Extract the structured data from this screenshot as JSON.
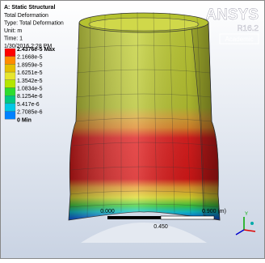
{
  "header": {
    "title": "A: Static Structural",
    "lines": [
      "Total Deformation",
      "Type: Total Deformation",
      "Unit: m",
      "Time: 1",
      "1/30/2016 2:28 PM"
    ]
  },
  "legend": {
    "entries": [
      {
        "label": "2.4376e-5 Max",
        "color": "#ff0000"
      },
      {
        "label": "2.1668e-5",
        "color": "#ff8c00"
      },
      {
        "label": "1.8959e-5",
        "color": "#e5c000"
      },
      {
        "label": "1.6251e-5",
        "color": "#e6e62e"
      },
      {
        "label": "1.3542e-5",
        "color": "#b4e600"
      },
      {
        "label": "1.0834e-5",
        "color": "#2edc2e"
      },
      {
        "label": "8.1254e-6",
        "color": "#00c882"
      },
      {
        "label": "5.417e-6",
        "color": "#00c8e6"
      },
      {
        "label": "2.7085e-6",
        "color": "#0082ff"
      },
      {
        "label": "0 Min",
        "color": "#0000ff"
      }
    ]
  },
  "logo": {
    "brand": "ANSYS",
    "version": "R16.2",
    "edition": "Academic"
  },
  "scale": {
    "start": "0.000",
    "end": "0.900 (m)",
    "mid": "0.450"
  },
  "triad": {
    "axis": "Y"
  }
}
